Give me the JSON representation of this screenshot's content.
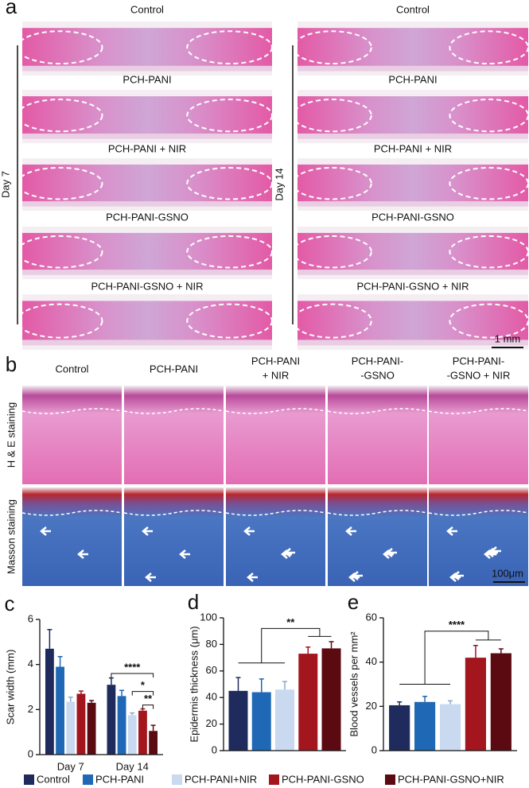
{
  "panel_a": {
    "label": "a",
    "columns": [
      {
        "day": "Day 7",
        "titles": [
          "Control",
          "PCH-PANI",
          "PCH-PANI + NIR",
          "PCH-PANI-GSNO",
          "PCH-PANI-GSNO + NIR"
        ]
      },
      {
        "day": "Day 14",
        "titles": [
          "Control",
          "PCH-PANI",
          "PCH-PANI + NIR",
          "PCH-PANI-GSNO",
          "PCH-PANI-GSNO + NIR"
        ]
      }
    ],
    "scale_bar": "1 mm"
  },
  "panel_b": {
    "label": "b",
    "columns": [
      [
        "Control"
      ],
      [
        "PCH-PANI"
      ],
      [
        "PCH-PANI",
        "+ NIR"
      ],
      [
        "PCH-PANI-",
        "-GSNO"
      ],
      [
        "PCH-PANI-",
        "-GSNO + NIR"
      ]
    ],
    "rows": [
      "H & E staining",
      "Masson staining"
    ],
    "scale_bar": "100μm"
  },
  "chart_data": [
    {
      "type": "bar",
      "label": "c",
      "y_label": "Scar width (mm)",
      "categories": [
        "Day 7",
        "Day 14"
      ],
      "ylim": [
        0,
        6
      ],
      "yticks": [
        0,
        2,
        4,
        6
      ],
      "annotations": [
        "****",
        "*",
        "**"
      ],
      "series": [
        {
          "name": "Control",
          "color": "#1f2b5c",
          "values": [
            4.7,
            3.1
          ],
          "errors": [
            0.85,
            0.3
          ]
        },
        {
          "name": "PCH-PANI",
          "color": "#1f68b5",
          "values": [
            3.9,
            2.6
          ],
          "errors": [
            0.45,
            0.25
          ]
        },
        {
          "name": "PCH-PANI+NIR",
          "color": "#c9d9ef",
          "values": [
            2.35,
            1.75
          ],
          "errors": [
            0.2,
            0.1
          ]
        },
        {
          "name": "PCH-PANI-GSNO",
          "color": "#a3161e",
          "values": [
            2.7,
            1.95
          ],
          "errors": [
            0.12,
            0.08
          ]
        },
        {
          "name": "PCH-PANI-GSNO+NIR",
          "color": "#5c0a12",
          "values": [
            2.3,
            1.05
          ],
          "errors": [
            0.1,
            0.25
          ]
        }
      ]
    },
    {
      "type": "bar",
      "label": "d",
      "y_label": "Epidermis thickness (μm)",
      "categories": [
        null
      ],
      "ylim": [
        0,
        100
      ],
      "yticks": [
        0,
        20,
        40,
        60,
        80,
        100
      ],
      "annotations": [
        "**"
      ],
      "series": [
        {
          "name": "Control",
          "color": "#1f2b5c",
          "values": [
            45
          ],
          "errors": [
            10
          ]
        },
        {
          "name": "PCH-PANI",
          "color": "#1f68b5",
          "values": [
            44
          ],
          "errors": [
            10
          ]
        },
        {
          "name": "PCH-PANI+NIR",
          "color": "#c9d9ef",
          "values": [
            46
          ],
          "errors": [
            6
          ]
        },
        {
          "name": "PCH-PANI-GSNO",
          "color": "#a3161e",
          "values": [
            73
          ],
          "errors": [
            5
          ]
        },
        {
          "name": "PCH-PANI-GSNO+NIR",
          "color": "#5c0a12",
          "values": [
            77
          ],
          "errors": [
            5
          ]
        }
      ]
    },
    {
      "type": "bar",
      "label": "e",
      "y_label": "Blood vessels per mm²",
      "categories": [
        null
      ],
      "ylim": [
        0,
        60
      ],
      "yticks": [
        0,
        20,
        40,
        60
      ],
      "annotations": [
        "****"
      ],
      "series": [
        {
          "name": "Control",
          "color": "#1f2b5c",
          "values": [
            20.5
          ],
          "errors": [
            1.5
          ]
        },
        {
          "name": "PCH-PANI",
          "color": "#1f68b5",
          "values": [
            22
          ],
          "errors": [
            2.5
          ]
        },
        {
          "name": "PCH-PANI+NIR",
          "color": "#c9d9ef",
          "values": [
            21
          ],
          "errors": [
            1.5
          ]
        },
        {
          "name": "PCH-PANI-GSNO",
          "color": "#a3161e",
          "values": [
            42
          ],
          "errors": [
            5.5
          ]
        },
        {
          "name": "PCH-PANI-GSNO+NIR",
          "color": "#5c0a12",
          "values": [
            44
          ],
          "errors": [
            2
          ]
        }
      ]
    }
  ]
}
